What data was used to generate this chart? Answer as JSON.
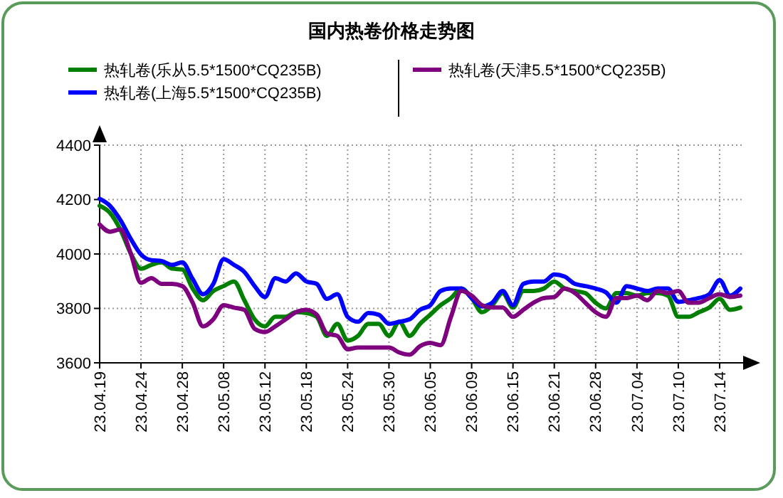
{
  "chart_data": {
    "type": "line",
    "title": "国内热卷价格走势图",
    "categories": [
      "23.04.19",
      null,
      null,
      null,
      "23.04.24",
      null,
      null,
      null,
      "23.04.28",
      null,
      null,
      null,
      "23.05.08",
      null,
      null,
      null,
      "23.05.12",
      null,
      null,
      null,
      "23.05.18",
      null,
      null,
      null,
      "23.05.24",
      null,
      null,
      null,
      "23.05.30",
      null,
      null,
      null,
      "23.06.05",
      null,
      null,
      null,
      "23.06.09",
      null,
      null,
      null,
      "23.06.15",
      null,
      null,
      null,
      "23.06.21",
      null,
      null,
      null,
      "23.06.28",
      null,
      null,
      null,
      "23.07.04",
      null,
      null,
      null,
      "23.07.10",
      null,
      null,
      null,
      "23.07.14",
      null,
      null
    ],
    "series": [
      {
        "name": "热轧卷(乐从5.5*1500*CQ235B)",
        "color": "#007f00",
        "values": [
          4177,
          4151,
          4090,
          4003,
          3946,
          3960,
          3969,
          3946,
          3943,
          3873,
          3830,
          3864,
          3882,
          3899,
          3830,
          3760,
          3734,
          3769,
          3769,
          3786,
          3783,
          3769,
          3699,
          3743,
          3682,
          3699,
          3743,
          3743,
          3699,
          3751,
          3699,
          3743,
          3777,
          3812,
          3838,
          3873,
          3838,
          3786,
          3812,
          3856,
          3803,
          3864,
          3864,
          3873,
          3899,
          3873,
          3864,
          3856,
          3821,
          3800,
          3856,
          3856,
          3847,
          3856,
          3856,
          3847,
          3769,
          3769,
          3786,
          3803,
          3835,
          3795,
          3803
        ]
      },
      {
        "name": "热轧卷(上海5.5*1500*CQ235B)",
        "color": "#0000ff",
        "values": [
          4203,
          4177,
          4125,
          4056,
          3998,
          3977,
          3974,
          3960,
          3969,
          3908,
          3852,
          3890,
          3981,
          3960,
          3934,
          3882,
          3842,
          3911,
          3899,
          3929,
          3899,
          3890,
          3835,
          3852,
          3769,
          3751,
          3783,
          3777,
          3743,
          3751,
          3760,
          3795,
          3812,
          3864,
          3873,
          3873,
          3838,
          3807,
          3821,
          3864,
          3812,
          3890,
          3899,
          3899,
          3925,
          3917,
          3890,
          3882,
          3873,
          3859,
          3821,
          3882,
          3873,
          3864,
          3873,
          3873,
          3824,
          3830,
          3838,
          3852,
          3904,
          3847,
          3873
        ]
      },
      {
        "name": "热轧卷(天津5.5*1500*CQ235B)",
        "color": "#7f007f",
        "values": [
          4108,
          4082,
          4090,
          4003,
          3894,
          3911,
          3890,
          3890,
          3882,
          3821,
          3734,
          3760,
          3812,
          3803,
          3795,
          3725,
          3713,
          3734,
          3760,
          3786,
          3795,
          3777,
          3708,
          3699,
          3650,
          3656,
          3656,
          3656,
          3656,
          3638,
          3630,
          3661,
          3673,
          3665,
          3769,
          3864,
          3847,
          3812,
          3803,
          3803,
          3769,
          3795,
          3821,
          3838,
          3842,
          3873,
          3856,
          3821,
          3786,
          3769,
          3838,
          3838,
          3847,
          3830,
          3864,
          3856,
          3864,
          3821,
          3821,
          3838,
          3852,
          3842,
          3847
        ]
      }
    ],
    "ylim": [
      3600,
      4400
    ],
    "yticks": [
      3600,
      3800,
      4000,
      4200,
      4400
    ],
    "grid": true,
    "legend": "top",
    "marker": "none",
    "line_style": "solid"
  }
}
